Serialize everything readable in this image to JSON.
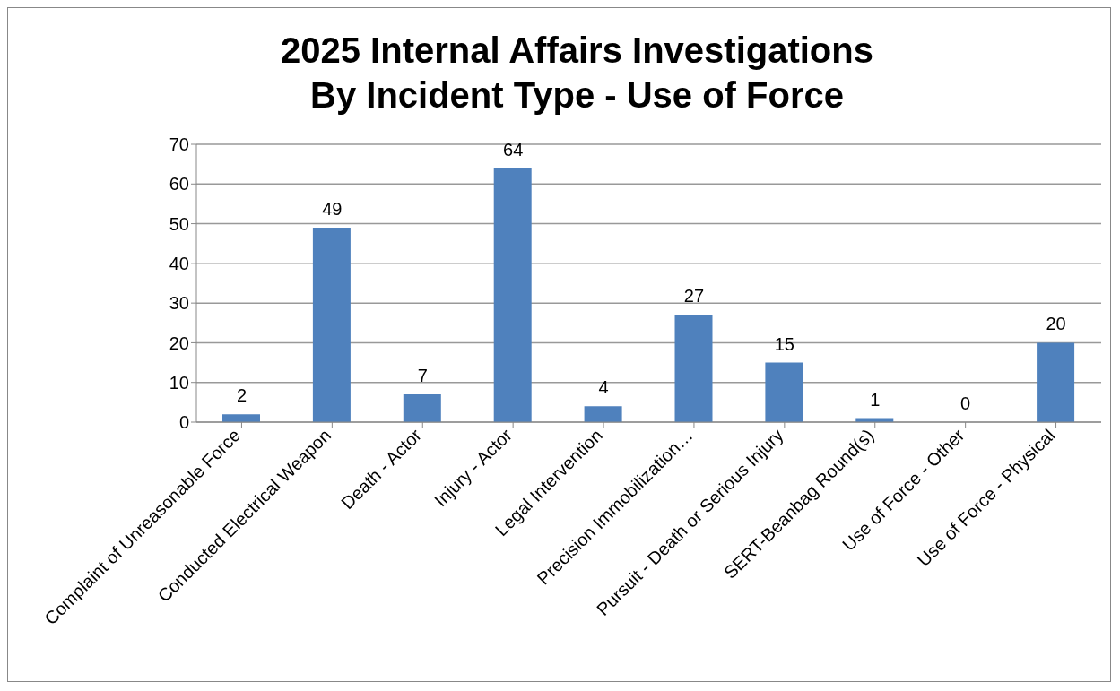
{
  "chart_data": {
    "type": "bar",
    "title": "2025 Internal Affairs Investigations By Incident Type - Use of Force",
    "categories": [
      "Complaint of Unreasonable Force",
      "Conducted Electrical Weapon",
      "Death - Actor",
      "Injury - Actor",
      "Legal Intervention",
      "Precision Immobilization…",
      "Pursuit - Death or Serious Injury",
      "SERT-Beanbag Round(s)",
      "Use of Force - Other",
      "Use of Force - Physical"
    ],
    "values": [
      2,
      49,
      7,
      64,
      4,
      27,
      15,
      1,
      0,
      20
    ],
    "color": "#4f81bd",
    "ylim": [
      0,
      70
    ],
    "yticks": [
      0,
      10,
      20,
      30,
      40,
      50,
      60,
      70
    ],
    "grid": "y",
    "data_labels": true
  }
}
